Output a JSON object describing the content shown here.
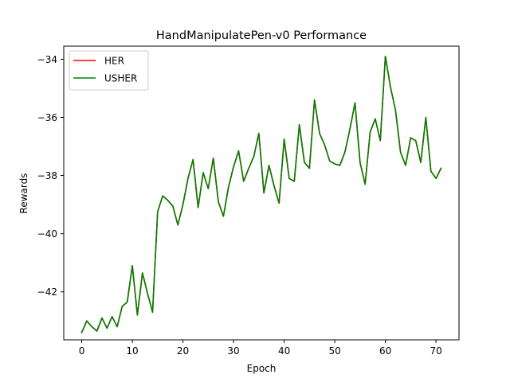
{
  "chart_data": {
    "type": "line",
    "title": "HandManipulatePen-v0 Performance",
    "xlabel": "Epoch",
    "ylabel": "Rewards",
    "xlim": [
      -3.55,
      74.55
    ],
    "ylim": [
      -43.65,
      -33.55
    ],
    "xticks": [
      0,
      10,
      20,
      30,
      40,
      50,
      60,
      70
    ],
    "yticks": [
      -42,
      -40,
      -38,
      -36,
      -34
    ],
    "ytick_labels": [
      "−42",
      "−40",
      "−38",
      "−36",
      "−34"
    ],
    "grid": false,
    "legend_position": "upper-left",
    "x": [
      0,
      1,
      2,
      3,
      4,
      5,
      6,
      7,
      8,
      9,
      10,
      11,
      12,
      13,
      14,
      15,
      16,
      17,
      18,
      19,
      20,
      21,
      22,
      23,
      24,
      25,
      26,
      27,
      28,
      29,
      30,
      31,
      32,
      33,
      34,
      35,
      36,
      37,
      38,
      39,
      40,
      41,
      42,
      43,
      44,
      45,
      46,
      47,
      48,
      49,
      50,
      51,
      52,
      53,
      54,
      55,
      56,
      57,
      58,
      59,
      60,
      61,
      62,
      63,
      64,
      65,
      66,
      67,
      68,
      69,
      70,
      71
    ],
    "series": [
      {
        "name": "HER",
        "color": "#ff0000",
        "values": [
          -43.4,
          -43.0,
          -43.2,
          -43.35,
          -42.9,
          -43.25,
          -42.85,
          -43.2,
          -42.5,
          -42.35,
          -41.1,
          -42.8,
          -41.35,
          -42.05,
          -42.7,
          -39.25,
          -38.7,
          -38.85,
          -39.05,
          -39.7,
          -39.0,
          -38.1,
          -37.45,
          -39.1,
          -37.9,
          -38.45,
          -37.4,
          -38.9,
          -39.4,
          -38.4,
          -37.7,
          -37.15,
          -38.2,
          -37.75,
          -37.35,
          -36.55,
          -38.6,
          -37.65,
          -38.35,
          -38.95,
          -36.75,
          -38.1,
          -38.2,
          -36.25,
          -37.55,
          -37.75,
          -35.4,
          -36.55,
          -36.95,
          -37.5,
          -37.6,
          -37.65,
          -37.2,
          -36.4,
          -35.5,
          -37.55,
          -38.3,
          -36.5,
          -36.05,
          -36.8,
          -33.9,
          -34.95,
          -35.75,
          -37.2,
          -37.65,
          -36.7,
          -36.8,
          -37.55,
          -36.0,
          -37.85,
          -38.1,
          -37.75
        ]
      },
      {
        "name": "USHER",
        "color": "#008000",
        "values": [
          -43.4,
          -43.0,
          -43.2,
          -43.35,
          -42.9,
          -43.25,
          -42.85,
          -43.2,
          -42.5,
          -42.35,
          -41.1,
          -42.8,
          -41.35,
          -42.05,
          -42.7,
          -39.25,
          -38.7,
          -38.85,
          -39.05,
          -39.7,
          -39.0,
          -38.1,
          -37.45,
          -39.1,
          -37.9,
          -38.45,
          -37.4,
          -38.9,
          -39.4,
          -38.4,
          -37.7,
          -37.15,
          -38.2,
          -37.75,
          -37.35,
          -36.55,
          -38.6,
          -37.65,
          -38.35,
          -38.95,
          -36.75,
          -38.1,
          -38.2,
          -36.25,
          -37.55,
          -37.75,
          -35.4,
          -36.55,
          -36.95,
          -37.5,
          -37.6,
          -37.65,
          -37.2,
          -36.4,
          -35.5,
          -37.55,
          -38.3,
          -36.5,
          -36.05,
          -36.8,
          -33.9,
          -34.95,
          -35.75,
          -37.2,
          -37.65,
          -36.7,
          -36.8,
          -37.55,
          -36.0,
          -37.85,
          -38.1,
          -37.75
        ]
      }
    ]
  }
}
